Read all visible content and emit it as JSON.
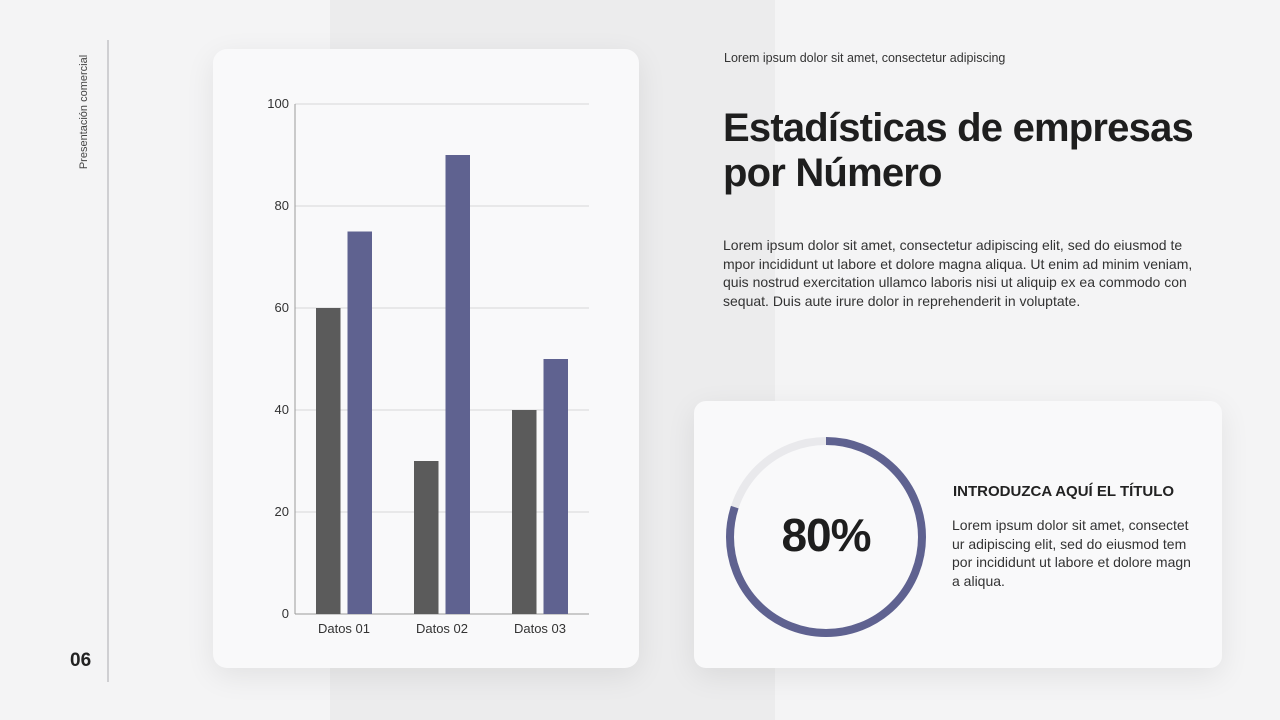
{
  "sidebar": {
    "label": "Presentación comercial",
    "page_number": "06"
  },
  "header": {
    "subtitle": "Lorem ipsum dolor sit amet, consectetur adipiscing",
    "title": "Estadísticas de empresas por Número",
    "body": "Lorem ipsum dolor sit amet, consectetur adipiscing elit, sed do eiusmod tempor incididunt ut labore et dolore magna aliqua. Ut enim ad minim veniam, quis nostrud exercitation ullamco laboris nisi ut aliquip ex ea commodo consequat. Duis aute irure dolor in reprehenderit in voluptate."
  },
  "stat": {
    "percent_label": "80%",
    "progress": 0.8,
    "title": "INTRODUZCA AQUÍ EL TÍTULO",
    "text": "Lorem ipsum dolor sit amet, consectetur adipiscing elit, sed do eiusmod tempor incididunt ut labore et dolore magna aliqua."
  },
  "colors": {
    "series_dark": "#5b5b5b",
    "series_accent": "#5f6290",
    "ring_track": "#e9e9ec"
  },
  "chart_data": {
    "type": "bar",
    "title": "",
    "xlabel": "",
    "ylabel": "",
    "categories": [
      "Datos 01",
      "Datos 02",
      "Datos 03"
    ],
    "series": [
      {
        "values": [
          60,
          30,
          40
        ]
      },
      {
        "values": [
          75,
          90,
          50
        ]
      }
    ],
    "ylim": [
      0,
      100
    ],
    "yticks": [
      0,
      20,
      40,
      60,
      80,
      100
    ],
    "grid": true,
    "legend": "none"
  }
}
